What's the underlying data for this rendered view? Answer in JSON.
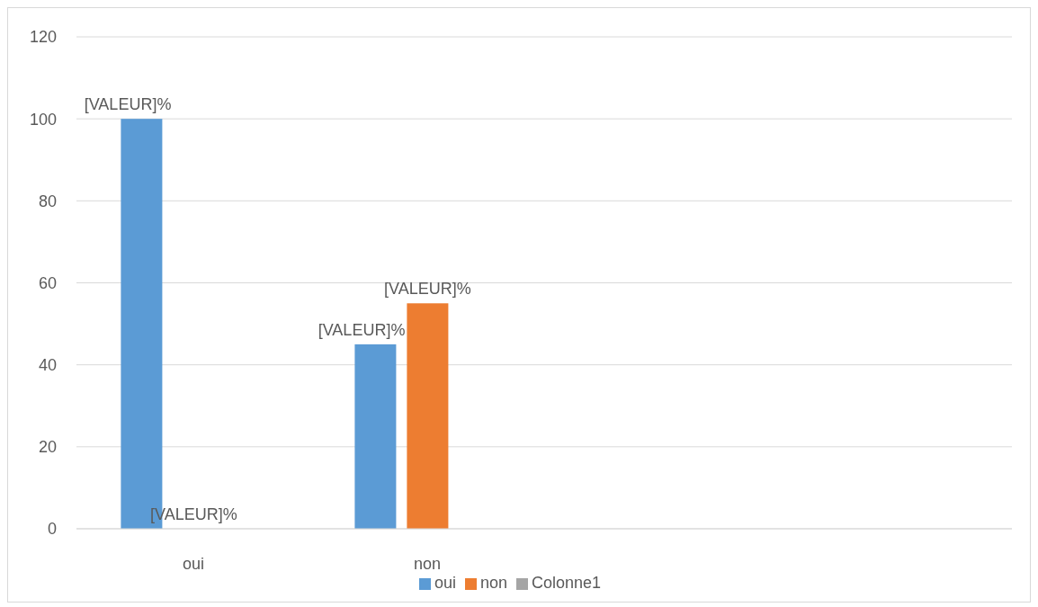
{
  "chart_data": {
    "type": "bar",
    "categories": [
      "oui",
      "non",
      null,
      null
    ],
    "series": [
      {
        "name": "oui",
        "color": "#5b9bd5",
        "values": [
          100,
          45,
          null,
          null
        ],
        "value_labels": [
          "[VALEUR]%",
          "[VALEUR]%",
          null,
          null
        ]
      },
      {
        "name": "non",
        "color": "#ed7d31",
        "values": [
          0,
          55,
          null,
          null
        ],
        "value_labels": [
          "[VALEUR]%",
          "[VALEUR]%",
          null,
          null
        ]
      },
      {
        "name": "Colonne1",
        "color": "#a5a5a5",
        "values": [
          null,
          null,
          null,
          null
        ]
      }
    ],
    "ylim": [
      0,
      120
    ],
    "yticks": [
      0,
      20,
      40,
      60,
      80,
      100,
      120
    ],
    "grid": "y",
    "legend": "bottom"
  }
}
